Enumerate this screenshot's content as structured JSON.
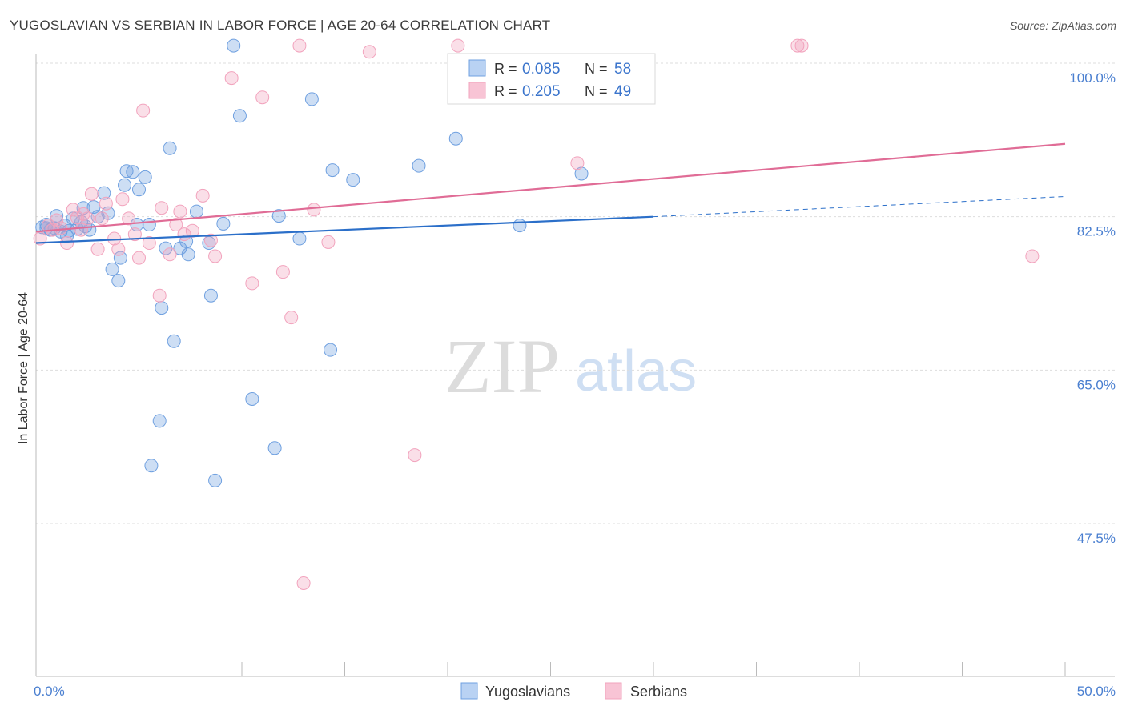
{
  "title": "YUGOSLAVIAN VS SERBIAN IN LABOR FORCE | AGE 20-64 CORRELATION CHART",
  "source": "Source: ZipAtlas.com",
  "watermark": {
    "zip": "ZIP",
    "atlas": "atlas"
  },
  "chart_data": {
    "type": "scatter",
    "xlabel": "",
    "ylabel": "In Labor Force | Age 20-64",
    "xlim": [
      0,
      50
    ],
    "ylim": [
      32,
      102
    ],
    "x_tick_labels": [
      {
        "value": 0,
        "label": "0.0%"
      },
      {
        "value": 50,
        "label": "50.0%"
      }
    ],
    "y_ticks": [
      {
        "value": 100.0,
        "label": "100.0%"
      },
      {
        "value": 82.5,
        "label": "82.5%"
      },
      {
        "value": 65.0,
        "label": "65.0%"
      },
      {
        "value": 47.5,
        "label": "47.5%"
      }
    ],
    "legend": {
      "r_label": "R =",
      "n_label": "N =",
      "entries": [
        {
          "name": "Yugoslavians",
          "r": "0.085",
          "n": "58"
        },
        {
          "name": "Serbians",
          "r": "0.205",
          "n": "49"
        }
      ]
    },
    "series": [
      {
        "name": "Yugoslavians",
        "color": "#6fa0e0",
        "line_color": "#2b6fc9",
        "trend": {
          "x0": 0,
          "y0": 79.5,
          "x1": 30,
          "y1": 82.5,
          "dashed_to_x": 50,
          "dashed_to_y": 84.8
        },
        "points": [
          [
            0.3,
            81.3
          ],
          [
            0.5,
            81.6
          ],
          [
            0.7,
            81.0
          ],
          [
            0.9,
            81.2
          ],
          [
            1.0,
            82.6
          ],
          [
            1.2,
            80.8
          ],
          [
            1.4,
            81.5
          ],
          [
            1.5,
            80.3
          ],
          [
            1.6,
            80.9
          ],
          [
            1.8,
            82.3
          ],
          [
            2.0,
            81.1
          ],
          [
            2.2,
            81.9
          ],
          [
            2.3,
            83.5
          ],
          [
            2.4,
            81.4
          ],
          [
            2.6,
            81.0
          ],
          [
            2.8,
            83.6
          ],
          [
            3.0,
            82.5
          ],
          [
            3.3,
            85.2
          ],
          [
            3.5,
            82.9
          ],
          [
            3.7,
            76.5
          ],
          [
            4.0,
            75.2
          ],
          [
            4.1,
            77.8
          ],
          [
            4.3,
            86.1
          ],
          [
            4.4,
            87.7
          ],
          [
            4.7,
            87.6
          ],
          [
            4.9,
            81.6
          ],
          [
            5.0,
            85.6
          ],
          [
            5.3,
            87.0
          ],
          [
            5.5,
            81.6
          ],
          [
            5.6,
            54.1
          ],
          [
            6.0,
            59.2
          ],
          [
            6.1,
            72.1
          ],
          [
            6.3,
            78.9
          ],
          [
            6.5,
            90.3
          ],
          [
            6.7,
            68.3
          ],
          [
            7.0,
            78.9
          ],
          [
            7.3,
            79.7
          ],
          [
            7.4,
            78.2
          ],
          [
            7.8,
            83.1
          ],
          [
            8.4,
            79.5
          ],
          [
            8.5,
            73.5
          ],
          [
            8.7,
            52.4
          ],
          [
            9.1,
            81.7
          ],
          [
            9.6,
            102.0
          ],
          [
            9.9,
            94.0
          ],
          [
            10.5,
            61.7
          ],
          [
            11.6,
            56.1
          ],
          [
            11.8,
            82.6
          ],
          [
            12.8,
            80.0
          ],
          [
            13.4,
            95.9
          ],
          [
            14.3,
            67.3
          ],
          [
            14.4,
            87.8
          ],
          [
            15.4,
            86.7
          ],
          [
            18.6,
            88.3
          ],
          [
            20.4,
            91.4
          ],
          [
            23.5,
            81.5
          ],
          [
            26.5,
            87.4
          ],
          [
            0.5,
            81.2
          ]
        ]
      },
      {
        "name": "Serbians",
        "color": "#f2a3bd",
        "line_color": "#e06c96",
        "trend": {
          "x0": 0,
          "y0": 80.8,
          "x1": 50,
          "y1": 90.8
        },
        "points": [
          [
            0.2,
            80.0
          ],
          [
            0.6,
            81.5
          ],
          [
            0.8,
            81.0
          ],
          [
            1.0,
            82.1
          ],
          [
            1.2,
            81.2
          ],
          [
            1.5,
            79.5
          ],
          [
            1.8,
            83.3
          ],
          [
            2.0,
            82.4
          ],
          [
            2.2,
            81.0
          ],
          [
            2.3,
            82.8
          ],
          [
            2.5,
            82.3
          ],
          [
            2.7,
            85.1
          ],
          [
            3.0,
            78.8
          ],
          [
            3.2,
            82.3
          ],
          [
            3.4,
            84.0
          ],
          [
            3.8,
            80.0
          ],
          [
            4.0,
            78.8
          ],
          [
            4.2,
            84.5
          ],
          [
            4.5,
            82.3
          ],
          [
            4.8,
            80.5
          ],
          [
            5.0,
            77.8
          ],
          [
            5.2,
            94.6
          ],
          [
            5.5,
            79.5
          ],
          [
            6.0,
            73.5
          ],
          [
            6.1,
            83.5
          ],
          [
            6.5,
            78.2
          ],
          [
            6.8,
            81.6
          ],
          [
            7.0,
            83.1
          ],
          [
            7.2,
            80.5
          ],
          [
            7.6,
            80.9
          ],
          [
            8.1,
            84.9
          ],
          [
            8.5,
            79.8
          ],
          [
            8.7,
            78.0
          ],
          [
            9.5,
            98.3
          ],
          [
            10.5,
            74.9
          ],
          [
            11.0,
            96.1
          ],
          [
            12.0,
            76.2
          ],
          [
            12.4,
            71.0
          ],
          [
            12.8,
            102.0
          ],
          [
            13.0,
            40.7
          ],
          [
            13.5,
            83.3
          ],
          [
            14.2,
            79.6
          ],
          [
            16.2,
            101.3
          ],
          [
            18.4,
            55.3
          ],
          [
            20.5,
            102.0
          ],
          [
            26.3,
            88.6
          ],
          [
            37.0,
            102.0
          ],
          [
            37.2,
            102.0
          ],
          [
            48.4,
            78.0
          ]
        ]
      }
    ]
  }
}
